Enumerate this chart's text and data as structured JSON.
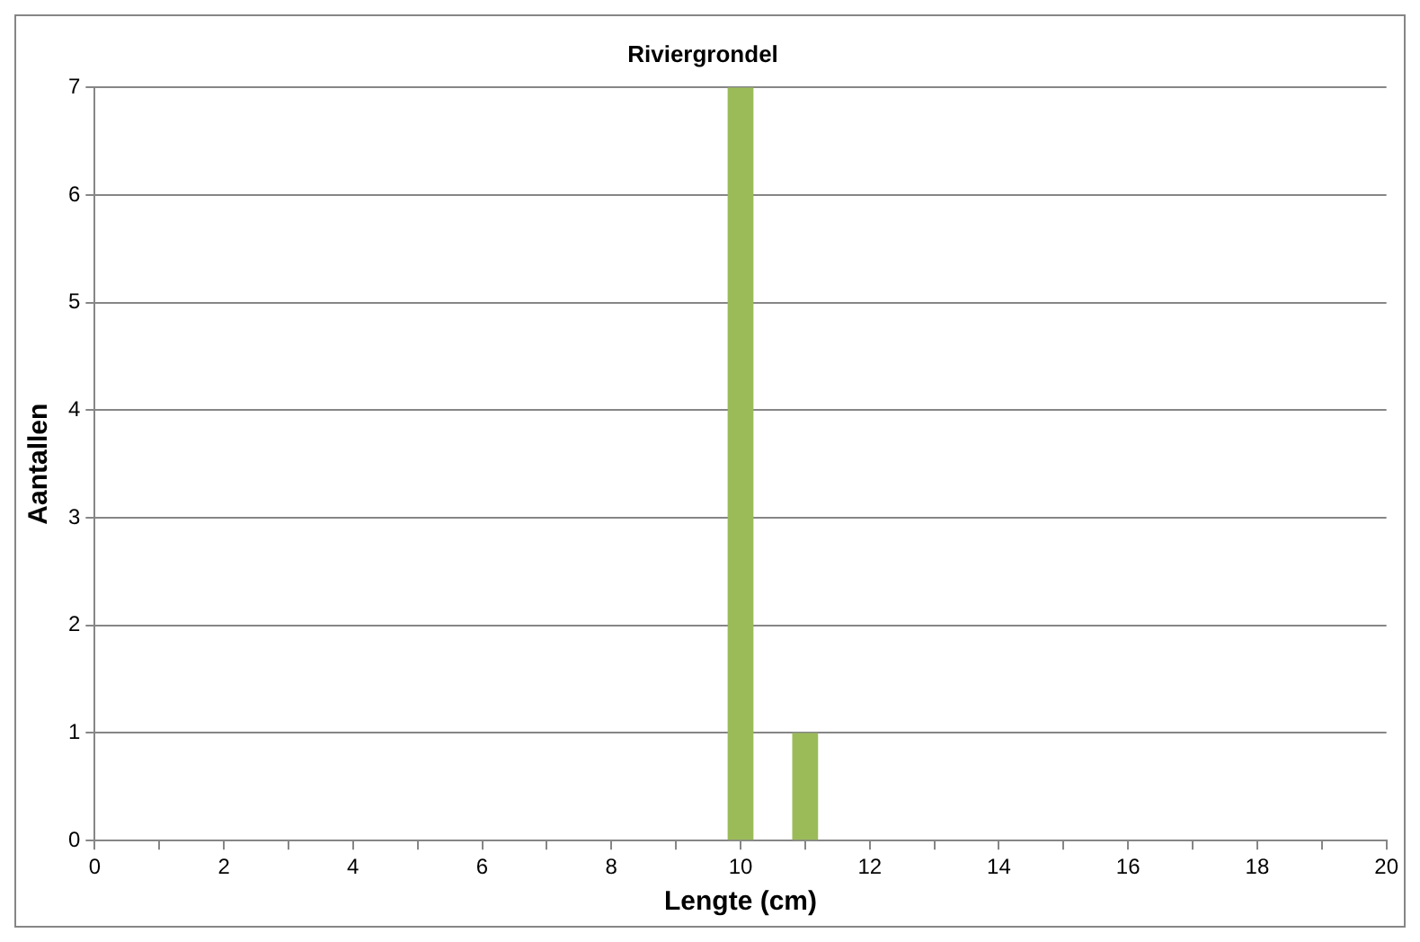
{
  "chart_data": {
    "type": "bar",
    "title": "Riviergrondel",
    "xlabel": "Lengte (cm)",
    "ylabel": "Aantallen",
    "x": [
      10,
      11
    ],
    "values": [
      7,
      1
    ],
    "color": "#9bbb59",
    "xlim": [
      0,
      20
    ],
    "xticks": [
      0,
      {
        "value": 1,
        "label": null
      },
      2,
      {
        "value": 3,
        "label": null
      },
      4,
      {
        "value": 5,
        "label": null
      },
      6,
      {
        "value": 7,
        "label": null
      },
      8,
      {
        "value": 9,
        "label": null
      },
      10,
      {
        "value": 11,
        "label": null
      },
      12,
      {
        "value": 13,
        "label": null
      },
      14,
      {
        "value": 15,
        "label": null
      },
      16,
      {
        "value": 17,
        "label": null
      },
      18,
      {
        "value": 19,
        "label": null
      },
      20
    ],
    "ylim": [
      0,
      7
    ],
    "yticks": [
      0,
      1,
      2,
      3,
      4,
      5,
      6,
      7
    ],
    "grid": "y",
    "legend": false
  }
}
